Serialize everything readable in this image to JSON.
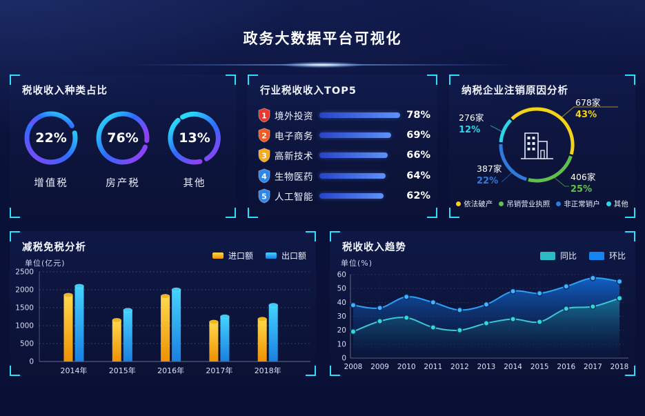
{
  "page": {
    "title": "政务大数据平台可视化"
  },
  "panels": {
    "tax_types": {
      "title": "税收收入种类占比"
    },
    "industry_top5": {
      "title": "行业税收收入TOP5"
    },
    "cancellation": {
      "title": "纳税企业注销原因分析"
    },
    "tax_reduction": {
      "title": "减税免税分析"
    },
    "tax_trend": {
      "title": "税收收入趋势"
    }
  },
  "chart_data": [
    {
      "panel": "税收收入种类占比",
      "type": "pie",
      "style": "percent-rings",
      "items": [
        {
          "label": "增值税",
          "pct": "22%",
          "value": 22
        },
        {
          "label": "房产税",
          "pct": "76%",
          "value": 76
        },
        {
          "label": "其他",
          "pct": "13%",
          "value": 13
        }
      ],
      "ring_colors": [
        "#8d42f8",
        "#2f6bff",
        "#29d8f8"
      ]
    },
    {
      "panel": "行业税收收入TOP5",
      "type": "bar",
      "orientation": "horizontal",
      "rows": [
        {
          "rank": "1",
          "label": "境外投资",
          "pct": "78%",
          "value": 78,
          "badge_color": "#e8392f"
        },
        {
          "rank": "2",
          "label": "电子商务",
          "pct": "69%",
          "value": 69,
          "badge_color": "#f15a24"
        },
        {
          "rank": "3",
          "label": "高新技术",
          "pct": "66%",
          "value": 66,
          "badge_color": "#f6a91c"
        },
        {
          "rank": "4",
          "label": "生物医药",
          "pct": "64%",
          "value": 64,
          "badge_color": "#2e86e8"
        },
        {
          "rank": "5",
          "label": "人工智能",
          "pct": "62%",
          "value": 62,
          "badge_color": "#2e86e8"
        }
      ],
      "bar_gradient": [
        "#2843c8",
        "#5e92f8"
      ]
    },
    {
      "panel": "纳税企业注销原因分析",
      "type": "pie",
      "style": "donut",
      "items": [
        {
          "label": "依法破产",
          "count": "678家",
          "pct": "43%",
          "value": 43,
          "color": "#f5d21a"
        },
        {
          "label": "吊销营业执照",
          "count": "406家",
          "pct": "25%",
          "value": 25,
          "color": "#5fc14d"
        },
        {
          "label": "非正常销户",
          "count": "387家",
          "pct": "22%",
          "value": 22,
          "color": "#2e7bdc"
        },
        {
          "label": "其他",
          "count": "276家",
          "pct": "12%",
          "value": 12,
          "color": "#2bd6ea"
        }
      ],
      "center_icon": "building-icon"
    },
    {
      "panel": "减税免税分析",
      "type": "bar",
      "unit": "单位(亿元)",
      "categories": [
        "2014年",
        "2015年",
        "2016年",
        "2017年",
        "2018年"
      ],
      "series": [
        {
          "name": "进口额",
          "color_top": "#ffd84d",
          "color_bottom": "#ee9102",
          "cap_color": "#f3b71c",
          "values": [
            1850,
            1150,
            1820,
            1100,
            1180
          ]
        },
        {
          "name": "出口额",
          "color_top": "#44d2ff",
          "color_bottom": "#1a7fe0",
          "cap_color": "#3fcbf8",
          "values": [
            2100,
            1430,
            2000,
            1250,
            1570
          ]
        }
      ],
      "ylim": [
        0,
        2500
      ],
      "yticks": [
        0,
        500,
        1000,
        1500,
        2000,
        2500
      ],
      "grid": "dotted",
      "legend_position": "top-right"
    },
    {
      "panel": "税收收入趋势",
      "type": "area",
      "unit": "单位(%)",
      "x": [
        "2008",
        "2009",
        "2010",
        "2011",
        "2012",
        "2013",
        "2014",
        "2015",
        "2016",
        "2017",
        "2018"
      ],
      "series": [
        {
          "name": "同比",
          "color": "#2cb8c4",
          "values": [
            19,
            26.5,
            29,
            22,
            20,
            25,
            28,
            26,
            35.5,
            37,
            43
          ]
        },
        {
          "name": "环比",
          "color": "#1584f0",
          "values": [
            38,
            36,
            44,
            40,
            34.5,
            38.5,
            48,
            46.5,
            51.5,
            57.5,
            55
          ]
        }
      ],
      "ylim": [
        0,
        60
      ],
      "yticks": [
        0,
        10,
        20,
        30,
        40,
        50,
        60
      ],
      "grid": "dotted",
      "legend_position": "top-right"
    }
  ]
}
